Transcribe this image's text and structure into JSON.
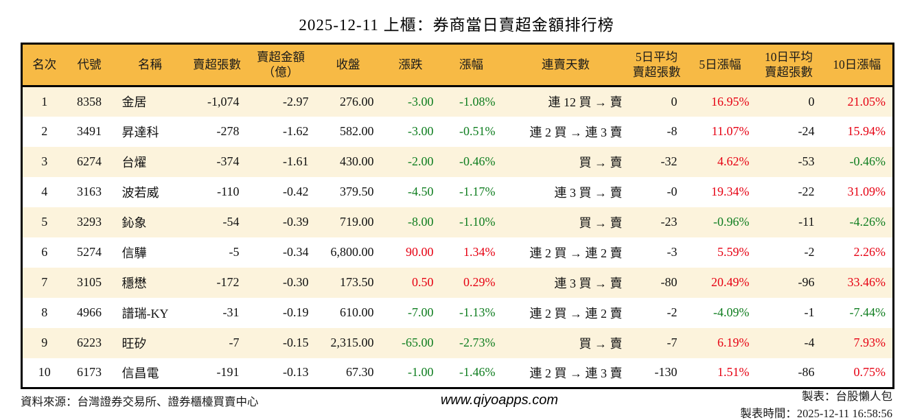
{
  "title": "2025-12-11 上櫃：券商當日賣超金額排行榜",
  "table": {
    "columns": [
      {
        "key": "rank",
        "label": "名次"
      },
      {
        "key": "code",
        "label": "代號"
      },
      {
        "key": "name",
        "label": "名稱"
      },
      {
        "key": "lots",
        "label": "賣超張數"
      },
      {
        "key": "amount",
        "label": "賣超金額",
        "label2": "（億）"
      },
      {
        "key": "close",
        "label": "收盤"
      },
      {
        "key": "change",
        "label": "漲跌"
      },
      {
        "key": "change_pct",
        "label": "漲幅"
      },
      {
        "key": "streak",
        "label": "連賣天數"
      },
      {
        "key": "avg5",
        "label": "5日平均",
        "label2": "賣超張數"
      },
      {
        "key": "pct5",
        "label": "5日漲幅"
      },
      {
        "key": "avg10",
        "label": "10日平均",
        "label2": "賣超張數"
      },
      {
        "key": "pct10",
        "label": "10日漲幅"
      }
    ],
    "rows": [
      {
        "rank": "1",
        "code": "8358",
        "name": "金居",
        "lots": "-1,074",
        "amount": "-2.97",
        "close": "276.00",
        "change": "-3.00",
        "change_pct": "-1.08%",
        "streak": "連 12 買 → 賣",
        "avg5": "0",
        "pct5": "16.95%",
        "avg10": "0",
        "pct10": "21.05%"
      },
      {
        "rank": "2",
        "code": "3491",
        "name": "昇達科",
        "lots": "-278",
        "amount": "-1.62",
        "close": "582.00",
        "change": "-3.00",
        "change_pct": "-0.51%",
        "streak": "連 2 買 → 連 3 賣",
        "avg5": "-8",
        "pct5": "11.07%",
        "avg10": "-24",
        "pct10": "15.94%"
      },
      {
        "rank": "3",
        "code": "6274",
        "name": "台燿",
        "lots": "-374",
        "amount": "-1.61",
        "close": "430.00",
        "change": "-2.00",
        "change_pct": "-0.46%",
        "streak": "買 → 賣",
        "avg5": "-32",
        "pct5": "4.62%",
        "avg10": "-53",
        "pct10": "-0.46%"
      },
      {
        "rank": "4",
        "code": "3163",
        "name": "波若威",
        "lots": "-110",
        "amount": "-0.42",
        "close": "379.50",
        "change": "-4.50",
        "change_pct": "-1.17%",
        "streak": "連 3 買 → 賣",
        "avg5": "-0",
        "pct5": "19.34%",
        "avg10": "-22",
        "pct10": "31.09%"
      },
      {
        "rank": "5",
        "code": "3293",
        "name": "鈊象",
        "lots": "-54",
        "amount": "-0.39",
        "close": "719.00",
        "change": "-8.00",
        "change_pct": "-1.10%",
        "streak": "買 → 賣",
        "avg5": "-23",
        "pct5": "-0.96%",
        "avg10": "-11",
        "pct10": "-4.26%"
      },
      {
        "rank": "6",
        "code": "5274",
        "name": "信驊",
        "lots": "-5",
        "amount": "-0.34",
        "close": "6,800.00",
        "change": "90.00",
        "change_pct": "1.34%",
        "streak": "連 2 買 → 連 2 賣",
        "avg5": "-3",
        "pct5": "5.59%",
        "avg10": "-2",
        "pct10": "2.26%"
      },
      {
        "rank": "7",
        "code": "3105",
        "name": "穩懋",
        "lots": "-172",
        "amount": "-0.30",
        "close": "173.50",
        "change": "0.50",
        "change_pct": "0.29%",
        "streak": "連 3 買 → 賣",
        "avg5": "-80",
        "pct5": "20.49%",
        "avg10": "-96",
        "pct10": "33.46%"
      },
      {
        "rank": "8",
        "code": "4966",
        "name": "譜瑞-KY",
        "lots": "-31",
        "amount": "-0.19",
        "close": "610.00",
        "change": "-7.00",
        "change_pct": "-1.13%",
        "streak": "連 2 買 → 連 2 賣",
        "avg5": "-2",
        "pct5": "-4.09%",
        "avg10": "-1",
        "pct10": "-7.44%"
      },
      {
        "rank": "9",
        "code": "6223",
        "name": "旺矽",
        "lots": "-7",
        "amount": "-0.15",
        "close": "2,315.00",
        "change": "-65.00",
        "change_pct": "-2.73%",
        "streak": "買 → 賣",
        "avg5": "-7",
        "pct5": "6.19%",
        "avg10": "-4",
        "pct10": "7.93%"
      },
      {
        "rank": "10",
        "code": "6173",
        "name": "信昌電",
        "lots": "-191",
        "amount": "-0.13",
        "close": "67.30",
        "change": "-1.00",
        "change_pct": "-1.46%",
        "streak": "連 2 買 → 連 3 賣",
        "avg5": "-130",
        "pct5": "1.51%",
        "avg10": "-86",
        "pct10": "0.75%"
      }
    ]
  },
  "footer": {
    "source": "資料來源：台灣證券交易所、證券櫃檯買賣中心",
    "website": "www.qiyoapps.com",
    "maker": "製表：台股懶人包",
    "made_time": "製表時間：2025-12-11 16:58:56"
  },
  "colors": {
    "up_red": "#e60012",
    "down_green": "#0e7d1f",
    "header_bg": "#f7ba45",
    "row_alt_bg": "#fcf3dc"
  }
}
